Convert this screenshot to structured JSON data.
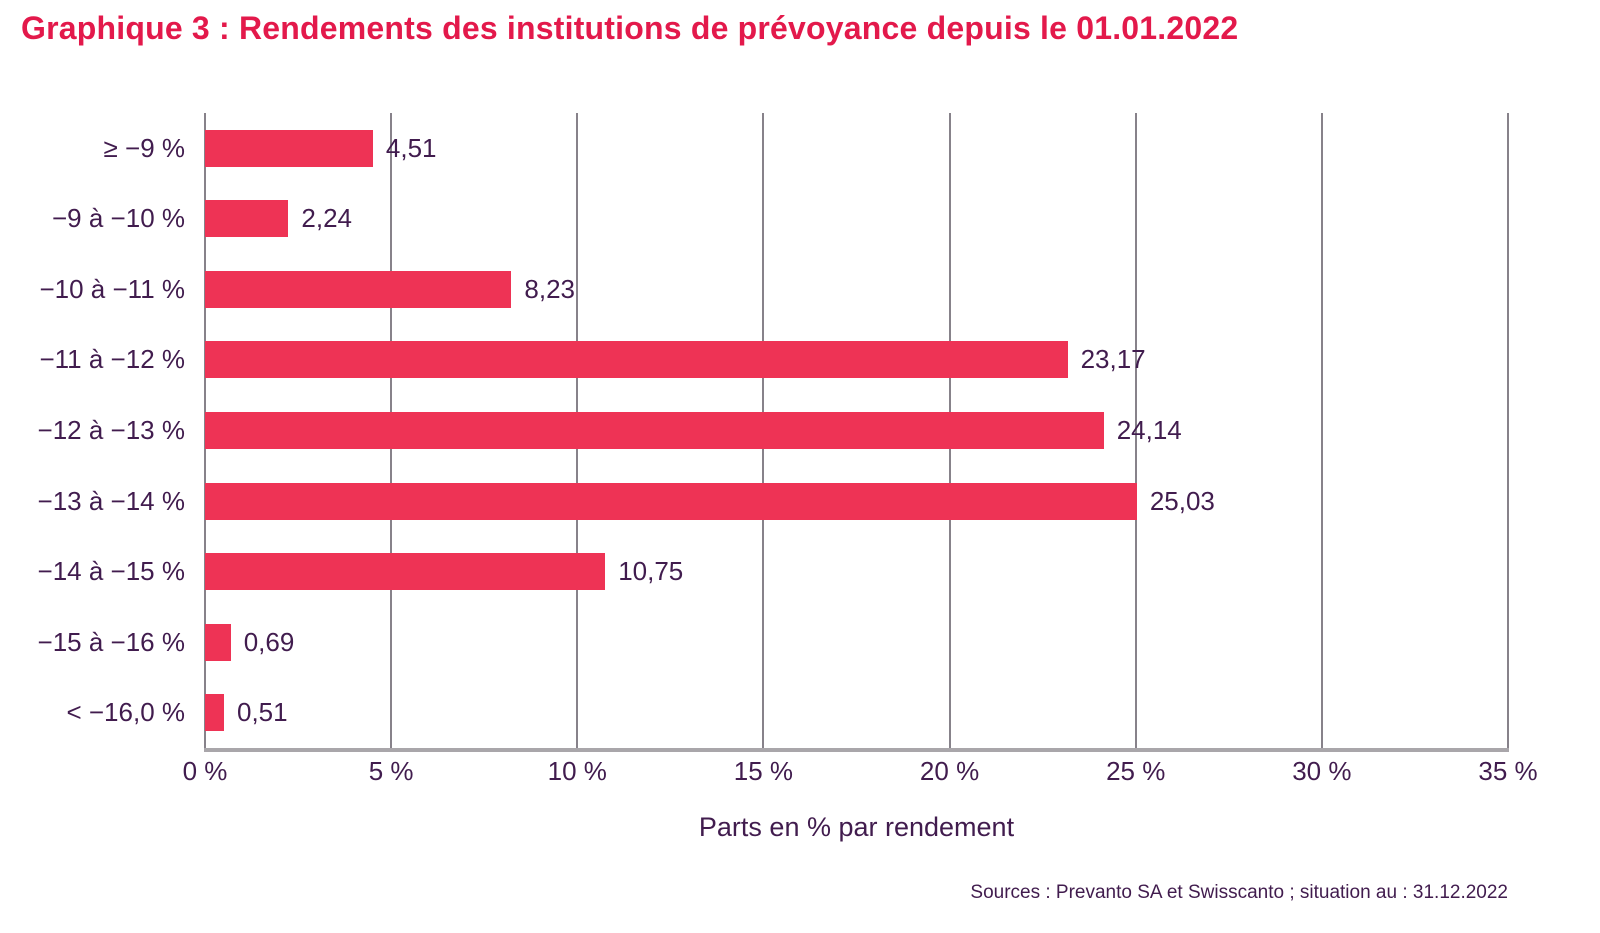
{
  "title": "Graphique 3 : Rendements des institutions de prévoyance depuis le 01.01.2022",
  "footer": {
    "sources": "Sources : Prevanto SA et Swisscanto ; situation au : 31.12.2022"
  },
  "colors": {
    "bar": "#EE3355",
    "title": "#E3194B",
    "text": "#411C4E",
    "grid": "#87828A",
    "axis": "#A9A6AA"
  },
  "chart_data": {
    "type": "bar",
    "orientation": "horizontal",
    "title": "Graphique 3 : Rendements des institutions de prévoyance depuis le 01.01.2022",
    "categories": [
      "≥ −9 %",
      "−9 à −10 %",
      "−10 à −11 %",
      "−11 à −12 %",
      "−12 à −13 %",
      "−13 à −14 %",
      "−14 à −15 %",
      "−15 à −16 %",
      "< −16,0 %"
    ],
    "values": [
      4.51,
      2.24,
      8.23,
      23.17,
      24.14,
      25.03,
      10.75,
      0.69,
      0.51
    ],
    "value_labels": [
      "4,51",
      "2,24",
      "8,23",
      "23,17",
      "24,14",
      "25,03",
      "10,75",
      "0,69",
      "0,51"
    ],
    "xlabel": "Parts en % par rendement",
    "ylabel": "",
    "x_ticks": [
      0,
      5,
      10,
      15,
      20,
      25,
      30,
      35
    ],
    "x_tick_labels": [
      "0 %",
      "5 %",
      "10 %",
      "15 %",
      "20 %",
      "25 %",
      "30 %",
      "35 %"
    ],
    "xlim": [
      0,
      35
    ],
    "grid": "vertical",
    "legend": "none"
  }
}
